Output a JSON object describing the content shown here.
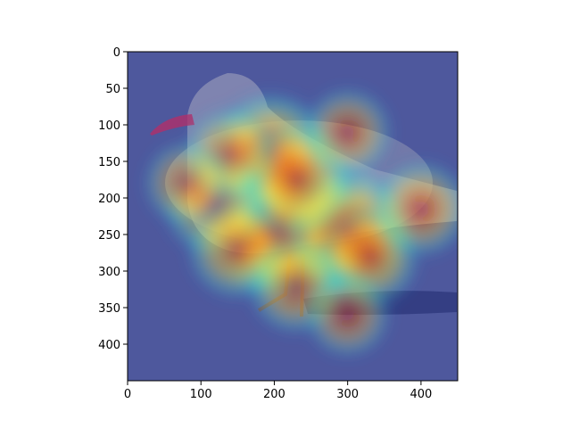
{
  "chart_data": {
    "type": "heatmap",
    "title": "",
    "xlabel": "",
    "ylabel": "",
    "image_size": [
      450,
      450
    ],
    "xlim": [
      0,
      450
    ],
    "ylim": [
      450,
      0
    ],
    "x_ticks": [
      0,
      100,
      200,
      300,
      400
    ],
    "x_tick_labels": [
      "0",
      "100",
      "200",
      "300",
      "400"
    ],
    "y_ticks": [
      0,
      50,
      100,
      150,
      200,
      250,
      300,
      350,
      400
    ],
    "y_tick_labels": [
      "0",
      "50",
      "100",
      "150",
      "200",
      "250",
      "300",
      "350",
      "400"
    ],
    "grid": false,
    "colormap": "jet",
    "background_image": "seagull-on-sand",
    "activation_hotspots": [
      {
        "x": 240,
        "y": 250,
        "intensity": 1.0
      },
      {
        "x": 200,
        "y": 245,
        "intensity": 0.95
      },
      {
        "x": 300,
        "y": 245,
        "intensity": 0.85
      },
      {
        "x": 195,
        "y": 140,
        "intensity": 0.8
      },
      {
        "x": 230,
        "y": 175,
        "intensity": 0.7
      },
      {
        "x": 120,
        "y": 210,
        "intensity": 0.55
      },
      {
        "x": 150,
        "y": 270,
        "intensity": 0.5
      },
      {
        "x": 330,
        "y": 280,
        "intensity": 0.5
      },
      {
        "x": 230,
        "y": 320,
        "intensity": 0.45
      },
      {
        "x": 400,
        "y": 215,
        "intensity": 0.45
      },
      {
        "x": 140,
        "y": 140,
        "intensity": 0.4
      },
      {
        "x": 300,
        "y": 110,
        "intensity": 0.35
      },
      {
        "x": 80,
        "y": 180,
        "intensity": 0.3
      },
      {
        "x": 300,
        "y": 360,
        "intensity": 0.3
      }
    ]
  }
}
